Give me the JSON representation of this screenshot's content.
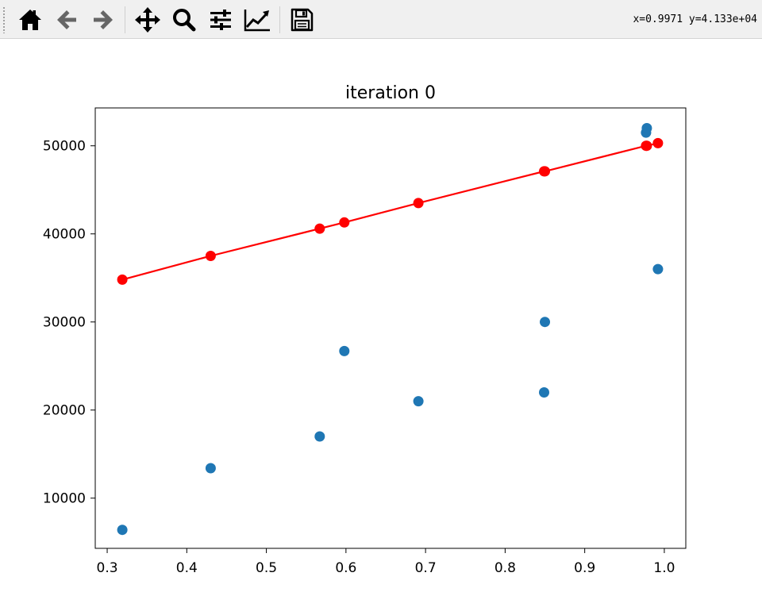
{
  "toolbar": {
    "buttons": [
      {
        "name": "home-button",
        "icon": "home-icon",
        "tooltip": "Reset original view"
      },
      {
        "name": "back-button",
        "icon": "arrow-left-icon",
        "tooltip": "Back to previous view"
      },
      {
        "name": "forward-button",
        "icon": "arrow-right-icon",
        "tooltip": "Forward to next view"
      },
      {
        "name": "pan-button",
        "icon": "move-icon",
        "tooltip": "Pan axes"
      },
      {
        "name": "zoom-button",
        "icon": "magnifier-icon",
        "tooltip": "Zoom to rectangle"
      },
      {
        "name": "configure-subplots-button",
        "icon": "sliders-icon",
        "tooltip": "Configure subplots"
      },
      {
        "name": "edit-axis-button",
        "icon": "line-chart-icon",
        "tooltip": "Edit axis"
      },
      {
        "name": "save-button",
        "icon": "floppy-disk-icon",
        "tooltip": "Save the figure"
      }
    ],
    "coordinates": "x=0.9971 y=4.133e+04"
  },
  "colors": {
    "scatter": "#1f77b4",
    "fit": "#ff0000",
    "toolbar_bg": "#f0f0f0",
    "icon_dark": "#000000",
    "icon_gray": "#666666"
  },
  "chart_data": {
    "type": "scatter",
    "title": "iteration 0",
    "xlabel": "",
    "ylabel": "",
    "xlim": [
      0.285,
      1.027
    ],
    "ylim": [
      4300,
      54300
    ],
    "xticks": [
      0.3,
      0.4,
      0.5,
      0.6,
      0.7,
      0.8,
      0.9,
      1.0
    ],
    "xtick_labels": [
      "0.3",
      "0.4",
      "0.5",
      "0.6",
      "0.7",
      "0.8",
      "0.9",
      "1.0"
    ],
    "yticks": [
      10000,
      20000,
      30000,
      40000,
      50000
    ],
    "ytick_labels": [
      "10000",
      "20000",
      "30000",
      "40000",
      "50000"
    ],
    "grid": false,
    "series": [
      {
        "type": "scatter",
        "color": "#1f77b4",
        "points": [
          {
            "x": 0.319,
            "y": 6400
          },
          {
            "x": 0.43,
            "y": 13400
          },
          {
            "x": 0.567,
            "y": 17000
          },
          {
            "x": 0.598,
            "y": 26700
          },
          {
            "x": 0.691,
            "y": 21000
          },
          {
            "x": 0.849,
            "y": 22000
          },
          {
            "x": 0.85,
            "y": 30000
          },
          {
            "x": 0.977,
            "y": 51500
          },
          {
            "x": 0.978,
            "y": 52000
          },
          {
            "x": 0.992,
            "y": 36000
          }
        ]
      },
      {
        "type": "line",
        "color": "#ff0000",
        "marker": "o",
        "points": [
          {
            "x": 0.319,
            "y": 34800
          },
          {
            "x": 0.43,
            "y": 37500
          },
          {
            "x": 0.567,
            "y": 40600
          },
          {
            "x": 0.598,
            "y": 41300
          },
          {
            "x": 0.691,
            "y": 43500
          },
          {
            "x": 0.849,
            "y": 47100
          },
          {
            "x": 0.85,
            "y": 47100
          },
          {
            "x": 0.977,
            "y": 50000
          },
          {
            "x": 0.978,
            "y": 50000
          },
          {
            "x": 0.992,
            "y": 50300
          }
        ]
      }
    ]
  }
}
